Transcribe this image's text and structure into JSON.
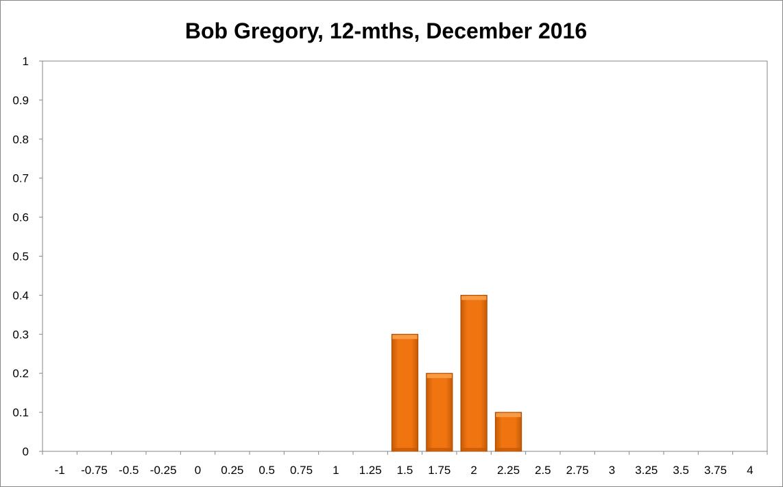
{
  "chart_data": {
    "type": "bar",
    "title": "Bob Gregory, 12-mths, December 2016",
    "xlabel": "",
    "ylabel": "",
    "categories": [
      "-1",
      "-0.75",
      "-0.5",
      "-0.25",
      "0",
      "0.25",
      "0.5",
      "0.75",
      "1",
      "1.25",
      "1.5",
      "1.75",
      "2",
      "2.25",
      "2.5",
      "2.75",
      "3",
      "3.25",
      "3.5",
      "3.75",
      "4"
    ],
    "values": [
      0,
      0,
      0,
      0,
      0,
      0,
      0,
      0,
      0,
      0,
      0.3,
      0.2,
      0.4,
      0.1,
      0,
      0,
      0,
      0,
      0,
      0,
      0
    ],
    "ylim": [
      0,
      1
    ],
    "yticks": [
      "0",
      "0.1",
      "0.2",
      "0.3",
      "0.4",
      "0.5",
      "0.6",
      "0.7",
      "0.8",
      "0.9",
      "1"
    ],
    "grid": false,
    "legend": "none",
    "colors": {
      "bar_fill": "#f07511",
      "bar_light": "#f9a04a",
      "bar_dark": "#c65a06",
      "bar_edge": "#a84b04",
      "axis": "#868686"
    }
  }
}
